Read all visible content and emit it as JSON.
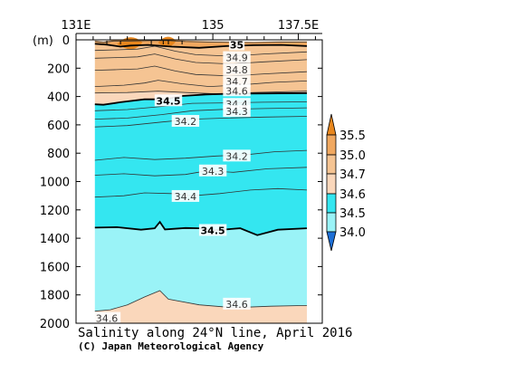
{
  "chart_data": {
    "type": "contour",
    "title": "Salinity along 24°N line, April 2016",
    "credit": "(C) Japan Meteorological Agency",
    "ylabel": "(m)",
    "xlim": [
      131,
      138.2
    ],
    "ylim": [
      0,
      2000
    ],
    "x_ticks": [
      {
        "value": 131,
        "label": "131E"
      },
      {
        "value": 135,
        "label": "135"
      },
      {
        "value": 137.5,
        "label": "137.5E"
      }
    ],
    "y_ticks": [
      0,
      200,
      400,
      600,
      800,
      1000,
      1200,
      1400,
      1600,
      1800,
      2000
    ],
    "colorbar": {
      "levels": [
        "35.5",
        "35.0",
        "34.7",
        "34.6",
        "34.5",
        "34.0"
      ],
      "bands": [
        {
          "range": [
            35.5,
            99
          ],
          "color": "#e8871e"
        },
        {
          "range": [
            35.0,
            35.5
          ],
          "color": "#f0a860"
        },
        {
          "range": [
            34.7,
            35.0
          ],
          "color": "#f5c493"
        },
        {
          "range": [
            34.6,
            34.7
          ],
          "color": "#fad7bb"
        },
        {
          "range": [
            34.5,
            34.6
          ],
          "color": "#34e6f0"
        },
        {
          "range": [
            34.0,
            34.5
          ],
          "color": "#9af3f7"
        },
        {
          "range": [
            0,
            34.0
          ],
          "color": "#1d6fd6"
        }
      ]
    },
    "contour_labels": [
      {
        "text": "35",
        "lon": 135.7,
        "depth": 35,
        "bold": true
      },
      {
        "text": "34.9",
        "lon": 135.7,
        "depth": 125
      },
      {
        "text": "34.8",
        "lon": 135.7,
        "depth": 210
      },
      {
        "text": "34.7",
        "lon": 135.7,
        "depth": 295
      },
      {
        "text": "34.6",
        "lon": 135.7,
        "depth": 360
      },
      {
        "text": "34.5",
        "lon": 133.7,
        "depth": 430,
        "bold": true
      },
      {
        "text": "34.4",
        "lon": 135.7,
        "depth": 455
      },
      {
        "text": "34.3",
        "lon": 135.7,
        "depth": 505
      },
      {
        "text": "34.2",
        "lon": 134.2,
        "depth": 575
      },
      {
        "text": "34.2",
        "lon": 135.7,
        "depth": 820
      },
      {
        "text": "34.3",
        "lon": 135.0,
        "depth": 925
      },
      {
        "text": "34.4",
        "lon": 134.2,
        "depth": 1105
      },
      {
        "text": "34.5",
        "lon": 135.0,
        "depth": 1345,
        "bold": true
      },
      {
        "text": "34.6",
        "lon": 135.7,
        "depth": 1865
      },
      {
        "text": "34.6",
        "lon": 131.9,
        "depth": 1965
      }
    ],
    "grid": false,
    "legend": "right"
  }
}
